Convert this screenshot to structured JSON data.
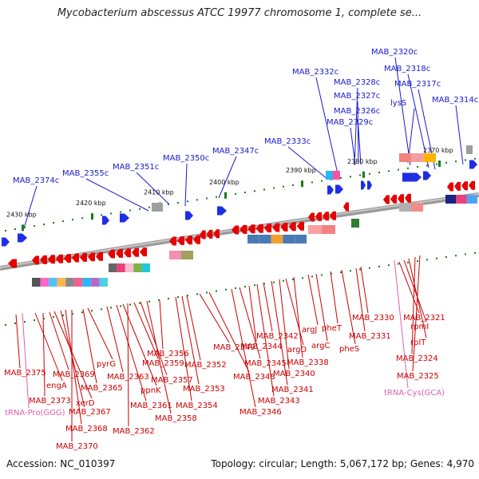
{
  "title": "Mycobacterium abscessus ATCC 19977 chromosome 1, complete se...",
  "footer": {
    "accession": "Accession: NC_010397",
    "summary": "Topology: circular; Length: 5,067,172 bp; Genes: 4,970"
  },
  "colors": {
    "forward_label": "#1a1acc",
    "reverse_label": "#cc0000",
    "rna_label": "#e060b0",
    "forward_gene": "#1e2ee6",
    "reverse_gene": "#e60000",
    "backbone": "#888888",
    "tick": "#1a7a1a"
  },
  "scale_labels": [
    "2430 kbp",
    "2420 kbp",
    "2410 kbp",
    "2400 kbp",
    "2390 kbp",
    "2380 kbp",
    "2370 kbp"
  ],
  "forward_labels": [
    "MAB_2374c",
    "MAB_2355c",
    "MAB_2351c",
    "MAB_2350c",
    "MAB_2347c",
    "MAB_2333c",
    "MAB_2332c",
    "MAB_2328c",
    "MAB_2327c",
    "MAB_2326c",
    "MAB_2329c",
    "MAB_2320c",
    "MAB_2318c",
    "MAB_2317c",
    "lysS",
    "MAB_2314c"
  ],
  "reverse_labels": [
    "MAB_2375",
    "engA",
    "MAB_2373",
    "MAB_2369",
    "xerD",
    "MAB_2367",
    "MAB_2368",
    "MAB_2370",
    "pyrG",
    "MAB_2365",
    "MAB_2363",
    "MAB_2361",
    "ppnK",
    "MAB_2362",
    "MAB_2359",
    "MAB_2357",
    "MAB_2358",
    "MAB_2356",
    "MAB_2354",
    "MAB_2353",
    "MAB_2352",
    "MAB_2349",
    "MAB_2348",
    "MAB_2346",
    "MAB_2345",
    "MAB_2344",
    "MAB_2343",
    "MAB_2342",
    "MAB_2341",
    "MAB_2340",
    "argD",
    "MAB_2338",
    "argJ",
    "argC",
    "pheT",
    "pheS",
    "MAB_2331",
    "MAB_2330",
    "MAB_2321",
    "rpmI",
    "rplT",
    "MAB_2324",
    "MAB_2325"
  ],
  "rna_labels": [
    "tRNA-Pro(GGG)",
    "tRNA-Cys(GCA)"
  ]
}
